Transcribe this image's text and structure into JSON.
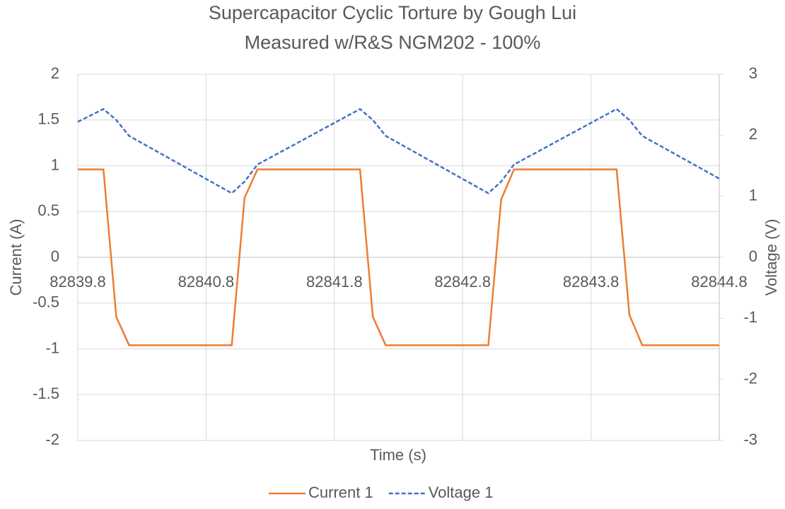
{
  "chart_data": {
    "type": "line",
    "title": "Supercapacitor Cyclic Torture by Gough Lui",
    "subtitle": "Measured w/R&S NGM202 - 100%",
    "x_label": "Time (s)",
    "y_label": "Current (A)",
    "y2_label": "Voltage (V)",
    "x": [
      82839.8,
      82840.0,
      82840.1,
      82840.2,
      82841.0,
      82841.1,
      82841.2,
      82842.0,
      82842.1,
      82842.2,
      82843.0,
      82843.1,
      82843.2,
      82844.0,
      82844.1,
      82844.2,
      82844.8
    ],
    "series": [
      {
        "name": "Current 1",
        "color": "#ed7d31",
        "line_style": "solid",
        "values": [
          0.96,
          0.96,
          -0.65,
          -0.96,
          -0.96,
          0.65,
          0.96,
          0.96,
          -0.65,
          -0.96,
          -0.96,
          0.63,
          0.96,
          0.96,
          -0.63,
          -0.96,
          -0.96
        ]
      },
      {
        "name": "Voltage 1",
        "color": "#4472c4",
        "line_style": "dashed",
        "axis": "y2",
        "values": [
          2.22,
          2.43,
          2.25,
          1.99,
          1.05,
          1.24,
          1.52,
          2.43,
          2.25,
          1.99,
          1.05,
          1.24,
          1.52,
          2.43,
          2.25,
          1.99,
          1.29
        ]
      }
    ],
    "xlim": [
      82839.8,
      82844.8
    ],
    "xticks": [
      82839.8,
      82840.8,
      82841.8,
      82842.8,
      82843.8,
      82844.8
    ],
    "ylim": [
      -2,
      2
    ],
    "yticks": [
      -2,
      -1.5,
      -1,
      -0.5,
      0,
      0.5,
      1,
      1.5,
      2
    ],
    "y2lim": [
      -3,
      3
    ],
    "y2ticks": [
      -3,
      -2,
      -1,
      0,
      1,
      2,
      3
    ],
    "grid": true,
    "legend": "bottom"
  }
}
